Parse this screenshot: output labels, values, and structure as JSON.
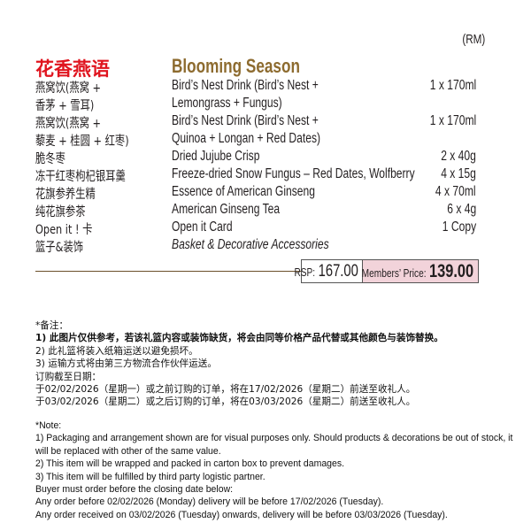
{
  "currency_label": "(RM)",
  "title_cn": "花香燕语",
  "title_en": "Blooming Season",
  "items": [
    {
      "cn": "燕窝饮(燕窝 +",
      "en": "Bird’s Nest Drink (Bird’s Nest +",
      "qty": "1 x 170ml"
    },
    {
      "cn": "香茅 + 雪耳)",
      "en": "Lemongrass + Fungus)",
      "qty": ""
    },
    {
      "cn": "燕窝饮(燕窝 +",
      "en": "Bird’s Nest Drink (Bird’s Nest +",
      "qty": "1 x 170ml"
    },
    {
      "cn": "藜麦 + 桂圆 + 红枣)",
      "en": "Quinoa + Longan + Red Dates)",
      "qty": ""
    },
    {
      "cn": "脆冬枣",
      "en": "Dried Jujube Crisp",
      "qty": "2 x 40g"
    },
    {
      "cn": "冻干红枣枸杞银耳羹",
      "en": "Freeze-dried Snow Fungus – Red Dates, Wolfberry",
      "qty": "4 x 15g"
    },
    {
      "cn": "花旗参养生精",
      "en": "Essence of American Ginseng",
      "qty": "4 x 70ml"
    },
    {
      "cn": "纯花旗参茶",
      "en": "American Ginseng Tea",
      "qty": "6 x 4g"
    },
    {
      "cn": "Open it ! 卡",
      "en": "Open it Card",
      "qty": "1 Copy"
    },
    {
      "cn": "篮子&装饰",
      "en": "Basket & Decorative Accessories",
      "qty": ""
    }
  ],
  "price": {
    "rsp_label": "RSP:",
    "rsp_value": "167.00",
    "members_label": "Members’ Price:",
    "members_value": "139.00",
    "members_bg": "#f2d3da"
  },
  "notes_cn": [
    "*备注：",
    "1) 此图片仅供参考，若该礼篮内容或装饰缺货，将会由同等价格产品代替或其他颜色与装饰替换。",
    "2) 此礼篮将装入纸箱运送以避免损坏。",
    "3) 运输方式将由第三方物流合作伙伴运送。",
    "订购截至日期：",
    "于02/02/2026（星期一）或之前订购的订单，将在17/02/2026（星期二）前送至收礼人。",
    "于03/02/2026（星期二）或之后订购的订单，将在03/03/2026（星期二）前送至收礼人。"
  ],
  "notes_en": [
    "*Note:",
    "1) Packaging and arrangement shown are for visual purposes only. Should products & decorations be out of stock, it",
    "will be replaced with other of the same value.",
    "2) This item will be wrapped and packed in carton box to prevent damages.",
    "3) This item will be fulfilled by third party logistic partner.",
    "Buyer must order before the closing date below:",
    "Any order before 02/02/2026 (Monday) delivery will be before 17/02/2026 (Tuesday).",
    "Any order received on 03/02/2026 (Tuesday) onwards, delivery will be before 03/03/2026 (Tuesday)."
  ]
}
